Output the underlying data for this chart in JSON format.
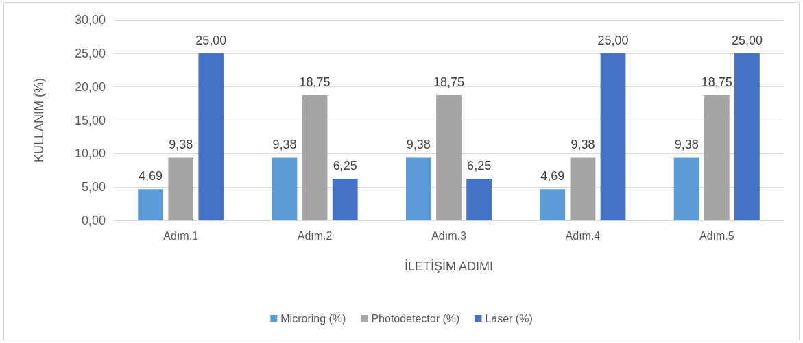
{
  "chart_data": {
    "type": "bar",
    "xlabel": "İLETİŞİM ADIMI",
    "ylabel": "KULLANIM (%)",
    "categories": [
      "Adım.1",
      "Adım.2",
      "Adım.3",
      "Adım.4",
      "Adım.5"
    ],
    "series": [
      {
        "name": "Microring (%)",
        "color": "#5b9bd5",
        "values": [
          4.69,
          9.38,
          9.38,
          4.69,
          9.38
        ],
        "value_labels": [
          "4,69",
          "9,38",
          "9,38",
          "4,69",
          "9,38"
        ]
      },
      {
        "name": "Photodetector (%)",
        "color": "#a5a5a5",
        "values": [
          9.38,
          18.75,
          18.75,
          9.38,
          18.75
        ],
        "value_labels": [
          "9,38",
          "18,75",
          "18,75",
          "9,38",
          "18,75"
        ]
      },
      {
        "name": "Laser (%)",
        "color": "#4472c4",
        "values": [
          25,
          6.25,
          6.25,
          25,
          25
        ],
        "value_labels": [
          "25,00",
          "6,25",
          "6,25",
          "25,00",
          "25,00"
        ]
      }
    ],
    "ylim": [
      0,
      30
    ],
    "yticks": [
      {
        "value": 0,
        "label": "0,00"
      },
      {
        "value": 5,
        "label": "5,00"
      },
      {
        "value": 10,
        "label": "10,00"
      },
      {
        "value": 15,
        "label": "15,00"
      },
      {
        "value": 20,
        "label": "20,00"
      },
      {
        "value": 25,
        "label": "25,00"
      },
      {
        "value": 30,
        "label": "30,00"
      }
    ],
    "grid": "y",
    "legend": "bottom"
  }
}
